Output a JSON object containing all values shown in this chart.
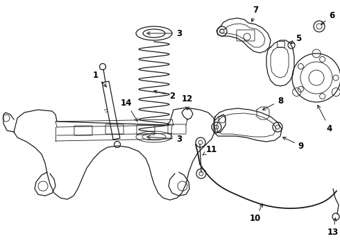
{
  "bg_color": "#ffffff",
  "line_color": "#1a1a1a",
  "label_color": "#000000",
  "fig_width": 4.9,
  "fig_height": 3.6,
  "dpi": 100,
  "font_size": 8.5
}
